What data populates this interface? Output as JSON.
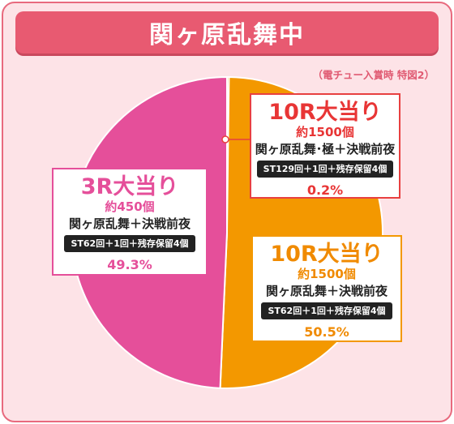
{
  "title": "関ヶ原乱舞中",
  "subnote": "（電チュー入賞時 特図2）",
  "colors": {
    "frame_bg": "#fde3e7",
    "title_bg": "#e85a71",
    "pink": "#e54f9a",
    "orange": "#f39800",
    "red": "#e83535"
  },
  "segments": [
    {
      "head": "10R大当り",
      "count": "約1500個",
      "mode": "関ヶ原乱舞･極＋決戦前夜",
      "pill": "ST129回＋1回＋残存保留4個",
      "pct": "0.2%"
    },
    {
      "head": "10R大当り",
      "count": "約1500個",
      "mode": "関ヶ原乱舞＋決戦前夜",
      "pill": "ST62回＋1回＋残存保留4個",
      "pct": "50.5%"
    },
    {
      "head": "3R大当り",
      "count": "約450個",
      "mode": "関ヶ原乱舞＋決戦前夜",
      "pill": "ST62回＋1回＋残存保留4個",
      "pct": "49.3%"
    }
  ],
  "chart_data": {
    "type": "pie",
    "title": "関ヶ原乱舞中",
    "subtitle": "（電チュー入賞時 特図2）",
    "categories": [
      "10R大当り",
      "10R大当り",
      "3R大当り"
    ],
    "values": [
      0.2,
      50.5,
      49.3
    ],
    "colors": [
      "#f39800",
      "#f39800",
      "#e54f9a"
    ],
    "legend": "none"
  }
}
